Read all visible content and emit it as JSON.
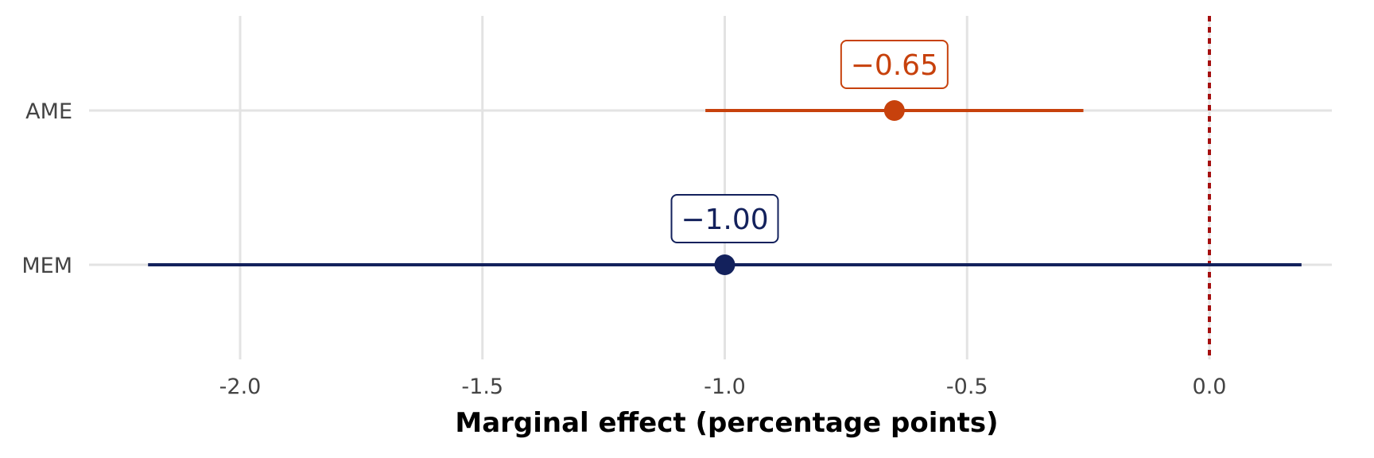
{
  "chart_data": {
    "type": "scatter",
    "subtype": "point-range",
    "title": "",
    "xlabel": "Marginal effect (percentage points)",
    "ylabel": "",
    "xlim": [
      -2.3,
      0.27
    ],
    "xticks": [
      -2.0,
      -1.5,
      -1.0,
      -0.5,
      0.0
    ],
    "xtick_labels": [
      "-2.0",
      "-1.5",
      "-1.0",
      "-0.5",
      "0.0"
    ],
    "grid": true,
    "legend": "none",
    "reference_line": {
      "x": 0.0,
      "style": "dotted",
      "color": "#a50f0f"
    },
    "categories": [
      "AME",
      "MEM"
    ],
    "series": [
      {
        "category": "AME",
        "estimate": -0.65,
        "lower": -1.04,
        "upper": -0.26,
        "label": "−0.65",
        "color": "#c7410c"
      },
      {
        "category": "MEM",
        "estimate": -1.0,
        "lower": -2.19,
        "upper": 0.19,
        "label": "−1.00",
        "color": "#13215c"
      }
    ]
  }
}
